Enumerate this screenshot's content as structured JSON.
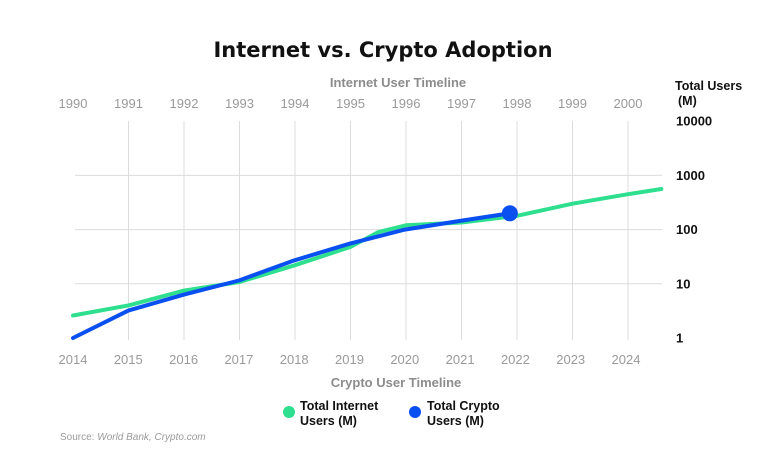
{
  "chart_data": {
    "type": "line",
    "title": "Internet vs. Crypto Adoption",
    "x_top": {
      "label": "Internet User Timeline",
      "ticks": [
        "1990",
        "1991",
        "1992",
        "1993",
        "1994",
        "1995",
        "1996",
        "1997",
        "1998",
        "1999",
        "2000"
      ],
      "range": [
        1990,
        2000.6
      ]
    },
    "x_bottom": {
      "label": "Crypto User Timeline",
      "ticks": [
        "2014",
        "2015",
        "2016",
        "2017",
        "2018",
        "2019",
        "2020",
        "2021",
        "2022",
        "2023",
        "2024"
      ],
      "range": [
        2014,
        2024.6
      ]
    },
    "y": {
      "label_lines": [
        "Total Users",
        "(M)"
      ],
      "scale": "log",
      "ticks": [
        "1",
        "10",
        "100",
        "1000",
        "10000"
      ],
      "range": [
        1,
        10000
      ]
    },
    "grid": true,
    "series": [
      {
        "name": "Total Internet Users (M)",
        "axis": "top",
        "color": "#2ddf8e",
        "x": [
          1990,
          1991,
          1992,
          1993,
          1994,
          1995,
          1995.5,
          1996,
          1997,
          1998,
          1999,
          2000,
          2000.6
        ],
        "y": [
          2.6,
          4,
          7.5,
          10.8,
          22,
          48,
          90,
          120,
          135,
          180,
          300,
          450,
          560
        ]
      },
      {
        "name": "Total Crypto Users (M)",
        "axis": "bottom",
        "color": "#0a4ff0",
        "x": [
          2014,
          2015,
          2016,
          2017,
          2018,
          2019,
          2020,
          2021,
          2021.9
        ],
        "y": [
          1,
          3.2,
          6.3,
          11.5,
          27,
          55,
          100,
          145,
          200
        ]
      }
    ],
    "legend": {
      "placement": "bottom-center",
      "items": [
        {
          "lines": [
            "Total Internet",
            "Users (M)"
          ],
          "color": "#2ddf8e"
        },
        {
          "lines": [
            "Total Crypto",
            "Users (M)"
          ],
          "color": "#0a4ff0"
        }
      ]
    },
    "source_prefix": "Source: ",
    "source_text": "World Bank, Crypto.com"
  }
}
